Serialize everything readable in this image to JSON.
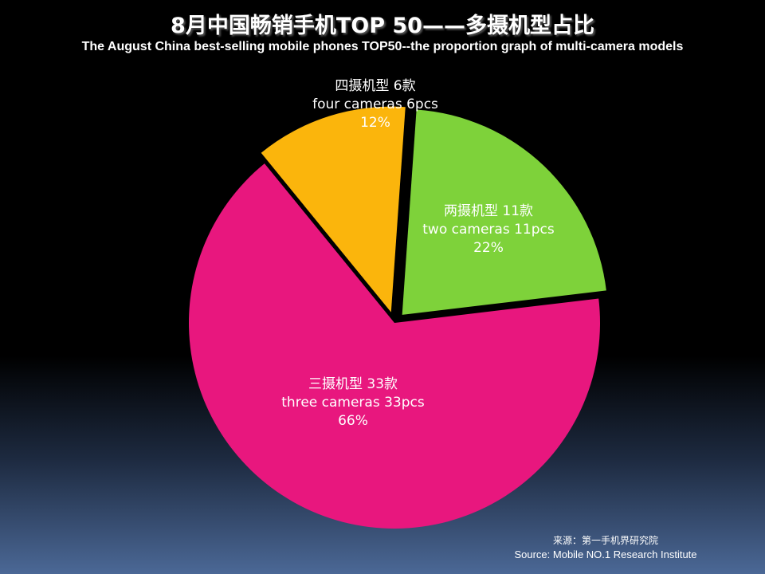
{
  "chart_data": {
    "type": "pie",
    "title": "8月中国畅销手机TOP 50——多摄机型占比",
    "subtitle": "The August China best-selling mobile phones TOP50--the proportion graph of multi-camera models",
    "slices": [
      {
        "label_cn": "两摄机型 11款",
        "label_en": "two cameras 11pcs",
        "percent_label": "22%",
        "value": 11,
        "color": "#7ed23a",
        "exploded": true
      },
      {
        "label_cn": "三摄机型 33款",
        "label_en": "three cameras 33pcs",
        "percent_label": "66%",
        "value": 33,
        "color": "#e8177e",
        "exploded": false
      },
      {
        "label_cn": "四摄机型 6款",
        "label_en": "four cameras 6pcs",
        "percent_label": "12%",
        "value": 6,
        "color": "#fbb50c",
        "exploded": true
      }
    ]
  },
  "source": {
    "cn": "来源：第一手机界研究院",
    "en": "Source: Mobile NO.1 Research Institute"
  }
}
